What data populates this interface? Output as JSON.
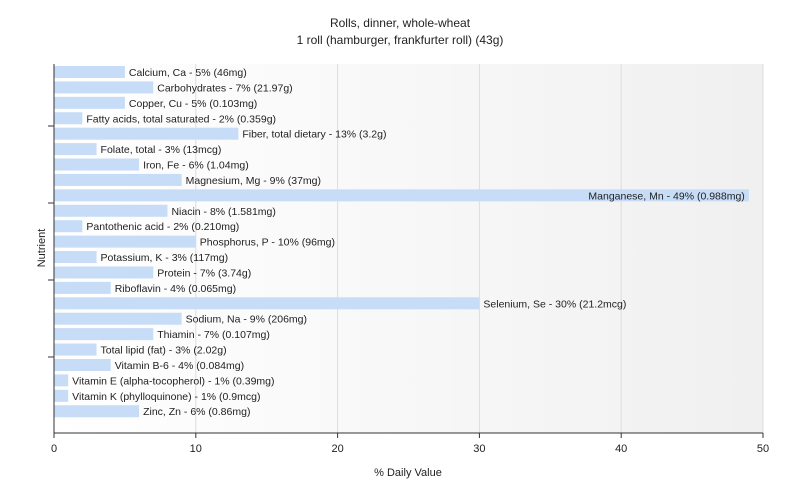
{
  "chart_data": {
    "type": "bar",
    "orientation": "horizontal",
    "title": "Rolls, dinner, whole-wheat",
    "subtitle": "1 roll (hamburger, frankfurter roll) (43g)",
    "xlabel": "% Daily Value",
    "ylabel": "Nutrient",
    "xlim": [
      0,
      50
    ],
    "xticks": [
      0,
      10,
      20,
      30,
      40,
      50
    ],
    "grid": true,
    "bar_color": "#c6dcf7",
    "categories": [
      "Calcium, Ca - 5% (46mg)",
      "Carbohydrates - 7% (21.97g)",
      "Copper, Cu - 5% (0.103mg)",
      "Fatty acids, total saturated - 2% (0.359g)",
      "Fiber, total dietary - 13% (3.2g)",
      "Folate, total - 3% (13mcg)",
      "Iron, Fe - 6% (1.04mg)",
      "Magnesium, Mg - 9% (37mg)",
      "Manganese, Mn - 49% (0.988mg)",
      "Niacin - 8% (1.581mg)",
      "Pantothenic acid - 2% (0.210mg)",
      "Phosphorus, P - 10% (96mg)",
      "Potassium, K - 3% (117mg)",
      "Protein - 7% (3.74g)",
      "Riboflavin - 4% (0.065mg)",
      "Selenium, Se - 30% (21.2mcg)",
      "Sodium, Na - 9% (206mg)",
      "Thiamin - 7% (0.107mg)",
      "Total lipid (fat) - 3% (2.02g)",
      "Vitamin B-6 - 4% (0.084mg)",
      "Vitamin E (alpha-tocopherol) - 1% (0.39mg)",
      "Vitamin K (phylloquinone) - 1% (0.9mcg)",
      "Zinc, Zn - 6% (0.86mg)"
    ],
    "values": [
      5,
      7,
      5,
      2,
      13,
      3,
      6,
      9,
      49,
      8,
      2,
      10,
      3,
      7,
      4,
      30,
      9,
      7,
      3,
      4,
      1,
      1,
      6
    ]
  }
}
